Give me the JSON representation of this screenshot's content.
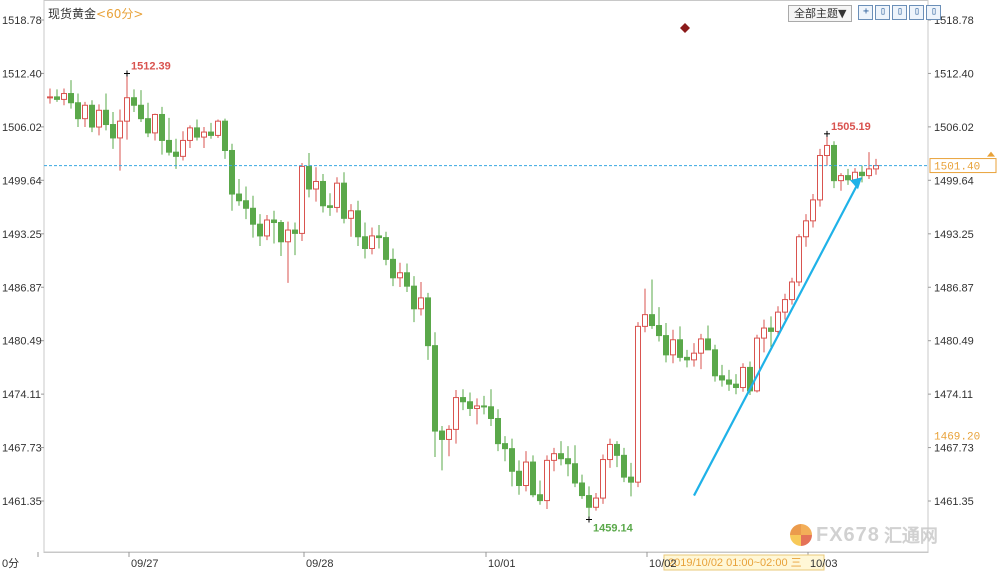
{
  "header": {
    "instrument": "现货黄金",
    "period": "<60分>",
    "topic_select": "全部主题▼",
    "toolbar_buttons": [
      "+",
      "▯",
      "▯",
      "▯",
      "▯"
    ]
  },
  "watermark": {
    "brand": "FX678",
    "brand_cn": "汇通网"
  },
  "chart_data": {
    "type": "candlestick",
    "title": "现货黄金 <60分>",
    "interval": "60分",
    "ylim": [
      1459.0,
      1518.78
    ],
    "y_ticks": [
      "1518.78",
      "1512.40",
      "1506.02",
      "1499.64",
      "1493.25",
      "1486.87",
      "1480.49",
      "1474.11",
      "1467.73",
      "1461.35"
    ],
    "x_labels": [
      "0分",
      "09/27",
      "09/28",
      "10/01",
      "10/02",
      "10/03"
    ],
    "x_label_index": [
      0,
      13,
      38,
      64,
      87,
      110
    ],
    "last_price": "1501.40",
    "left_value_label": "1469.20",
    "crosshair_time": "2019/10/02 01:00~02:00 三",
    "annotations": [
      {
        "label": "1512.39",
        "index": 11,
        "price": 1512.39,
        "type": "high"
      },
      {
        "label": "1505.19",
        "index": 111,
        "price": 1505.19,
        "type": "high"
      },
      {
        "label": "1459.14",
        "index": 77,
        "price": 1459.14,
        "type": "low"
      }
    ],
    "trend_arrow": {
      "from": [
        92,
        1462.0
      ],
      "to": [
        116,
        1500.0
      ]
    },
    "ohlc": [
      [
        1509.5,
        1510.6,
        1508.8,
        1509.6
      ],
      [
        1509.6,
        1510.5,
        1509.0,
        1509.3
      ],
      [
        1509.3,
        1510.6,
        1508.6,
        1510.0
      ],
      [
        1510.0,
        1511.6,
        1508.2,
        1508.9
      ],
      [
        1508.9,
        1510.0,
        1506.0,
        1507.0
      ],
      [
        1507.0,
        1509.0,
        1506.0,
        1508.6
      ],
      [
        1508.6,
        1509.2,
        1505.4,
        1506.0
      ],
      [
        1506.0,
        1508.7,
        1505.0,
        1508.0
      ],
      [
        1508.0,
        1510.0,
        1505.6,
        1506.3
      ],
      [
        1506.3,
        1507.8,
        1503.4,
        1504.7
      ],
      [
        1504.7,
        1508.1,
        1500.8,
        1506.7
      ],
      [
        1506.7,
        1512.39,
        1504.5,
        1509.5
      ],
      [
        1509.5,
        1510.5,
        1507.8,
        1508.6
      ],
      [
        1508.6,
        1510.4,
        1506.6,
        1507.0
      ],
      [
        1507.0,
        1508.9,
        1504.8,
        1505.3
      ],
      [
        1505.3,
        1507.6,
        1504.4,
        1507.5
      ],
      [
        1507.5,
        1508.4,
        1502.7,
        1504.4
      ],
      [
        1504.4,
        1507.1,
        1502.6,
        1503.0
      ],
      [
        1503.0,
        1504.6,
        1501.0,
        1502.5
      ],
      [
        1502.5,
        1505.5,
        1502.0,
        1504.4
      ],
      [
        1504.4,
        1506.2,
        1503.5,
        1505.9
      ],
      [
        1505.9,
        1506.9,
        1504.4,
        1504.8
      ],
      [
        1504.8,
        1506.0,
        1503.5,
        1505.4
      ],
      [
        1505.4,
        1506.5,
        1504.6,
        1505.0
      ],
      [
        1505.0,
        1506.9,
        1504.7,
        1506.7
      ],
      [
        1506.7,
        1507.0,
        1502.2,
        1503.2
      ],
      [
        1503.2,
        1504.0,
        1496.0,
        1498.0
      ],
      [
        1498.0,
        1499.8,
        1496.6,
        1497.2
      ],
      [
        1497.2,
        1498.9,
        1495.0,
        1496.3
      ],
      [
        1496.3,
        1497.8,
        1492.8,
        1494.4
      ],
      [
        1494.4,
        1495.6,
        1491.8,
        1493.0
      ],
      [
        1493.0,
        1495.5,
        1492.5,
        1494.9
      ],
      [
        1494.9,
        1496.0,
        1492.1,
        1494.6
      ],
      [
        1494.6,
        1494.9,
        1490.6,
        1492.3
      ],
      [
        1492.3,
        1494.7,
        1487.4,
        1493.7
      ],
      [
        1493.7,
        1494.6,
        1490.7,
        1493.3
      ],
      [
        1493.3,
        1501.7,
        1492.4,
        1501.3
      ],
      [
        1501.3,
        1502.9,
        1497.6,
        1498.6
      ],
      [
        1498.6,
        1501.2,
        1497.1,
        1499.5
      ],
      [
        1499.5,
        1500.4,
        1495.8,
        1496.6
      ],
      [
        1496.6,
        1498.1,
        1495.4,
        1496.4
      ],
      [
        1496.4,
        1500.0,
        1495.8,
        1499.3
      ],
      [
        1499.3,
        1500.6,
        1494.5,
        1495.1
      ],
      [
        1495.1,
        1496.8,
        1492.9,
        1496.0
      ],
      [
        1496.0,
        1497.2,
        1491.8,
        1492.9
      ],
      [
        1492.9,
        1494.6,
        1490.3,
        1491.5
      ],
      [
        1491.5,
        1494.0,
        1490.8,
        1493.0
      ],
      [
        1493.0,
        1494.3,
        1491.5,
        1492.8
      ],
      [
        1492.8,
        1493.5,
        1489.5,
        1490.2
      ],
      [
        1490.2,
        1491.5,
        1487.0,
        1488.0
      ],
      [
        1488.0,
        1489.8,
        1486.9,
        1488.6
      ],
      [
        1488.6,
        1489.7,
        1486.3,
        1487.0
      ],
      [
        1487.0,
        1488.2,
        1482.7,
        1484.3
      ],
      [
        1484.3,
        1487.5,
        1483.5,
        1485.6
      ],
      [
        1485.6,
        1486.2,
        1478.2,
        1479.9
      ],
      [
        1479.9,
        1481.5,
        1466.6,
        1469.7
      ],
      [
        1469.7,
        1470.3,
        1465.0,
        1468.7
      ],
      [
        1468.7,
        1470.4,
        1466.7,
        1469.9
      ],
      [
        1469.9,
        1474.6,
        1468.2,
        1473.7
      ],
      [
        1473.7,
        1474.7,
        1472.2,
        1473.2
      ],
      [
        1473.2,
        1474.3,
        1471.5,
        1472.4
      ],
      [
        1472.4,
        1473.6,
        1470.5,
        1472.7
      ],
      [
        1472.7,
        1473.9,
        1471.7,
        1472.6
      ],
      [
        1472.6,
        1474.7,
        1470.3,
        1471.2
      ],
      [
        1471.2,
        1472.3,
        1467.3,
        1468.2
      ],
      [
        1468.2,
        1469.1,
        1466.1,
        1467.6
      ],
      [
        1467.6,
        1468.8,
        1463.1,
        1464.9
      ],
      [
        1464.9,
        1466.2,
        1462.1,
        1463.2
      ],
      [
        1463.2,
        1467.3,
        1462.5,
        1466.0
      ],
      [
        1466.0,
        1466.8,
        1461.8,
        1462.1
      ],
      [
        1462.1,
        1463.8,
        1460.9,
        1461.4
      ],
      [
        1461.4,
        1466.8,
        1460.4,
        1466.2
      ],
      [
        1466.2,
        1467.7,
        1464.9,
        1467.0
      ],
      [
        1467.0,
        1468.5,
        1465.6,
        1466.4
      ],
      [
        1466.4,
        1467.9,
        1464.3,
        1465.8
      ],
      [
        1465.8,
        1468.0,
        1463.0,
        1463.5
      ],
      [
        1463.5,
        1464.5,
        1461.6,
        1462.0
      ],
      [
        1462.0,
        1463.1,
        1459.14,
        1460.6
      ],
      [
        1460.6,
        1462.3,
        1460.2,
        1461.7
      ],
      [
        1461.7,
        1466.9,
        1461.0,
        1466.3
      ],
      [
        1466.3,
        1468.8,
        1465.3,
        1468.1
      ],
      [
        1468.1,
        1468.5,
        1465.4,
        1466.8
      ],
      [
        1466.8,
        1467.7,
        1463.6,
        1464.2
      ],
      [
        1464.2,
        1465.9,
        1461.9,
        1463.6
      ],
      [
        1463.6,
        1482.7,
        1463.0,
        1482.2
      ],
      [
        1482.2,
        1486.7,
        1481.5,
        1483.6
      ],
      [
        1483.6,
        1487.8,
        1481.9,
        1482.3
      ],
      [
        1482.3,
        1484.5,
        1480.4,
        1481.1
      ],
      [
        1481.1,
        1482.6,
        1477.9,
        1478.8
      ],
      [
        1478.8,
        1481.8,
        1477.8,
        1480.6
      ],
      [
        1480.6,
        1482.2,
        1478.0,
        1478.5
      ],
      [
        1478.5,
        1479.4,
        1477.3,
        1478.2
      ],
      [
        1478.2,
        1480.2,
        1477.4,
        1479.0
      ],
      [
        1479.0,
        1481.3,
        1477.1,
        1480.7
      ],
      [
        1480.7,
        1482.3,
        1479.6,
        1479.4
      ],
      [
        1479.4,
        1480.0,
        1475.6,
        1476.3
      ],
      [
        1476.3,
        1477.6,
        1475.0,
        1475.8
      ],
      [
        1475.8,
        1477.0,
        1474.5,
        1475.3
      ],
      [
        1475.3,
        1476.5,
        1474.1,
        1474.9
      ],
      [
        1474.9,
        1477.8,
        1474.4,
        1477.3
      ],
      [
        1477.3,
        1478.0,
        1474.0,
        1474.5
      ],
      [
        1474.5,
        1481.2,
        1474.3,
        1480.8
      ],
      [
        1480.8,
        1483.0,
        1479.1,
        1482.0
      ],
      [
        1482.0,
        1483.4,
        1479.7,
        1481.6
      ],
      [
        1481.6,
        1484.6,
        1481.0,
        1483.9
      ],
      [
        1483.9,
        1486.1,
        1483.0,
        1485.4
      ],
      [
        1485.4,
        1488.0,
        1484.8,
        1487.5
      ],
      [
        1487.5,
        1493.2,
        1487.0,
        1492.9
      ],
      [
        1492.9,
        1495.6,
        1491.7,
        1494.8
      ],
      [
        1494.8,
        1498.0,
        1494.0,
        1497.3
      ],
      [
        1497.3,
        1503.4,
        1496.5,
        1502.6
      ],
      [
        1502.6,
        1505.19,
        1501.4,
        1503.8
      ],
      [
        1503.8,
        1504.3,
        1498.7,
        1499.6
      ],
      [
        1499.6,
        1500.5,
        1498.4,
        1500.2
      ],
      [
        1500.2,
        1501.0,
        1499.1,
        1499.7
      ],
      [
        1499.7,
        1501.1,
        1499.0,
        1500.6
      ],
      [
        1500.6,
        1501.4,
        1499.4,
        1500.2
      ],
      [
        1500.2,
        1503.0,
        1499.8,
        1501.0
      ],
      [
        1501.0,
        1502.2,
        1500.3,
        1501.4
      ]
    ]
  }
}
